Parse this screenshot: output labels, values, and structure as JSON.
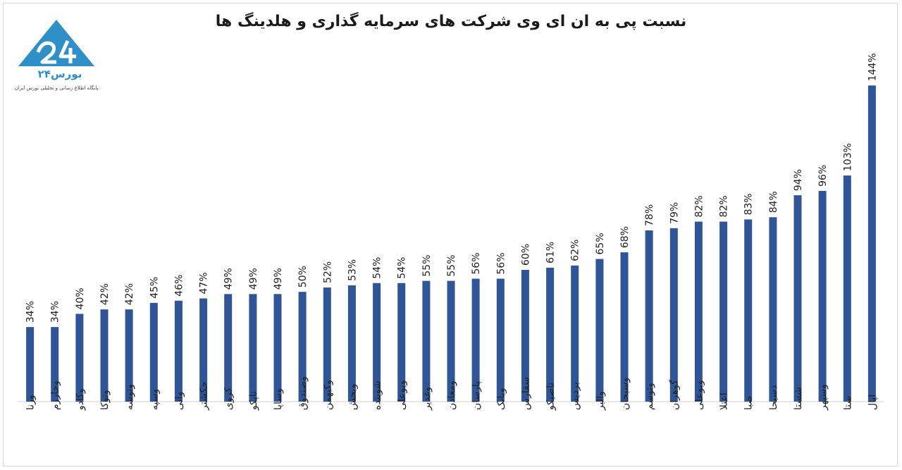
{
  "title": "نسبت پی به ان ای وی شرکت های سرمایه گذاری و هلدینگ ها",
  "logo": {
    "name": "بورس۲۴",
    "tagline": "پایگاه اطلاع رسانی و تحلیلی بورس ایران"
  },
  "colors": {
    "bar": "#2f5597",
    "axis": "#d0d0d0",
    "logo_blue": "#2f8fc7"
  },
  "chart_data": {
    "type": "bar",
    "categories": [
      "ورنا",
      "وخارزم",
      "وکادو",
      "وتوکا",
      "وتوشه",
      "وسپه",
      "وانی",
      "حکشتر",
      "کروی",
      "ناپکو",
      "وساپا",
      "وصندوق",
      "وکبهمن",
      "وبحش",
      "شوبنده",
      "وبوعلی",
      "وغدیر",
      "ومعادن",
      "پارسان",
      "وبانک",
      "سفارس",
      "تاصیکو",
      "بردیس",
      "والبر",
      "وسبحان",
      "وتوسم",
      "گوهران",
      "وبوعلی",
      "اعتلا",
      "صبا",
      "دسبحا",
      "شستا",
      "وسپهر",
      "ستا",
      "اپال"
    ],
    "values": [
      34,
      34,
      40,
      42,
      42,
      45,
      46,
      47,
      49,
      49,
      49,
      50,
      52,
      53,
      54,
      54,
      55,
      55,
      56,
      56,
      60,
      61,
      62,
      65,
      68,
      78,
      79,
      82,
      82,
      83,
      84,
      94,
      96,
      103,
      144
    ],
    "value_labels": [
      "34%",
      "34%",
      "40%",
      "42%",
      "42%",
      "45%",
      "46%",
      "47%",
      "49%",
      "49%",
      "49%",
      "50%",
      "52%",
      "53%",
      "54%",
      "54%",
      "55%",
      "55%",
      "56%",
      "56%",
      "60%",
      "61%",
      "62%",
      "65%",
      "68%",
      "78%",
      "79%",
      "82%",
      "82%",
      "83%",
      "84%",
      "94%",
      "96%",
      "103%",
      "144%"
    ],
    "title": "نسبت پی به ان ای وی شرکت های سرمایه گذاری و هلدینگ ها",
    "xlabel": "",
    "ylabel": "",
    "ylim": [
      0,
      145
    ],
    "grid": false,
    "legend": "none"
  }
}
